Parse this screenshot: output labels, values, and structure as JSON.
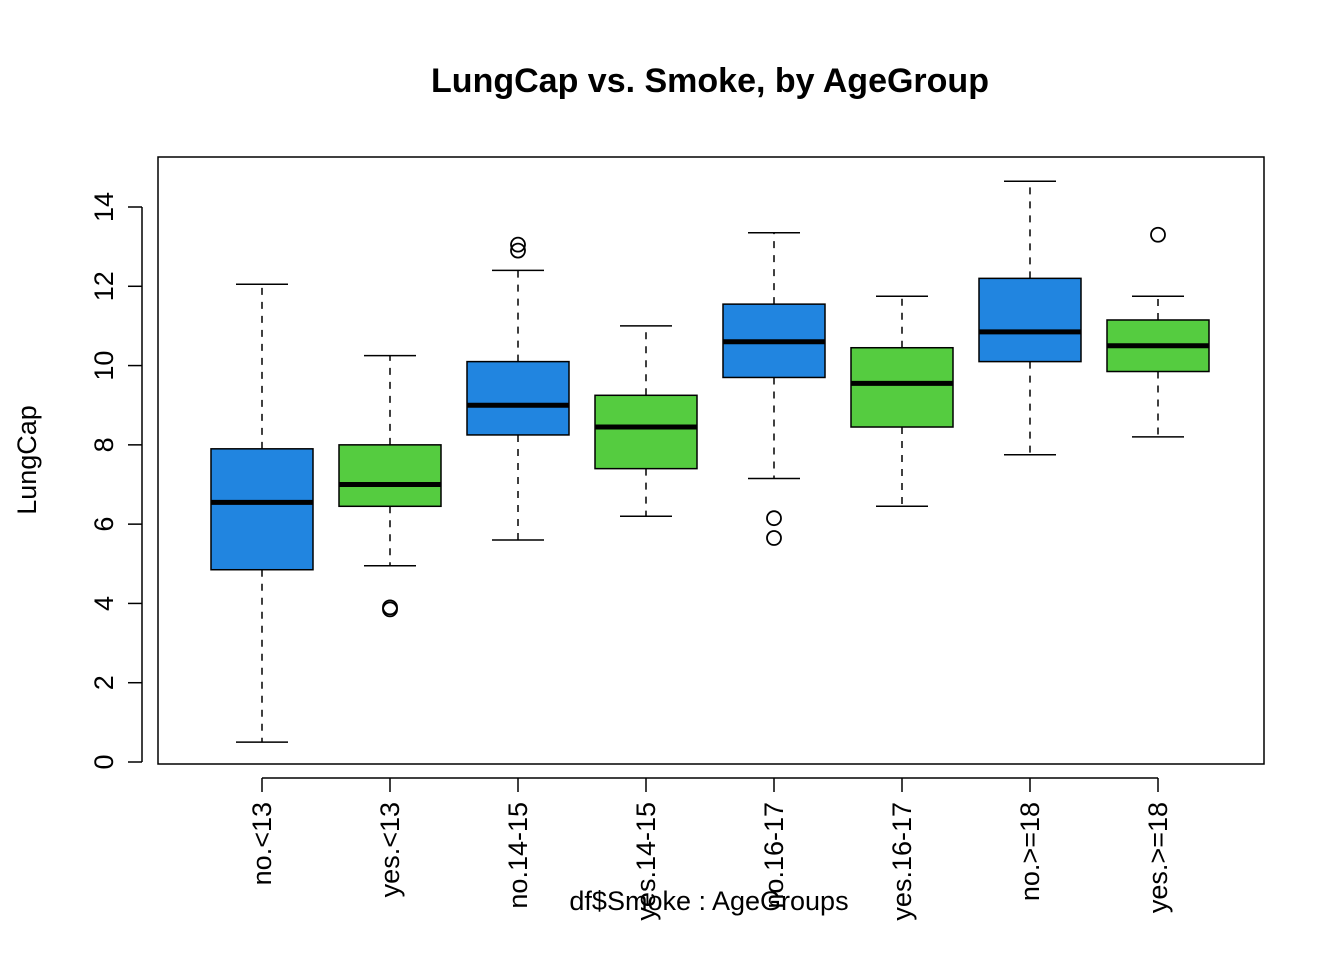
{
  "chart_data": {
    "type": "box",
    "title": "LungCap vs. Smoke, by AgeGroup",
    "xlabel": "df$Smoke : AgeGroups",
    "ylabel": "LungCap",
    "ylim": [
      0,
      15
    ],
    "y_ticks": [
      0,
      2,
      4,
      6,
      8,
      10,
      12,
      14
    ],
    "grid": false,
    "colors": {
      "no": "#2185E0",
      "yes": "#55CC40"
    },
    "categories": [
      "no.<13",
      "yes.<13",
      "no.14-15",
      "yes.14-15",
      "no.16-17",
      "yes.16-17",
      "no.>=18",
      "yes.>=18"
    ],
    "boxes": [
      {
        "label": "no.<13",
        "group": "no",
        "whisker_low": 0.5,
        "q1": 4.85,
        "median": 6.55,
        "q3": 7.9,
        "whisker_high": 12.05,
        "outliers": []
      },
      {
        "label": "yes.<13",
        "group": "yes",
        "whisker_low": 4.95,
        "q1": 6.45,
        "median": 7.0,
        "q3": 8.0,
        "whisker_high": 10.25,
        "outliers": [
          3.85,
          3.9
        ]
      },
      {
        "label": "no.14-15",
        "group": "no",
        "whisker_low": 5.6,
        "q1": 8.25,
        "median": 9.0,
        "q3": 10.1,
        "whisker_high": 12.4,
        "outliers": [
          12.9,
          13.05
        ]
      },
      {
        "label": "yes.14-15",
        "group": "yes",
        "whisker_low": 6.2,
        "q1": 7.4,
        "median": 8.45,
        "q3": 9.25,
        "whisker_high": 11.0,
        "outliers": []
      },
      {
        "label": "no.16-17",
        "group": "no",
        "whisker_low": 7.15,
        "q1": 9.7,
        "median": 10.6,
        "q3": 11.55,
        "whisker_high": 13.35,
        "outliers": [
          5.65,
          6.15
        ]
      },
      {
        "label": "yes.16-17",
        "group": "yes",
        "whisker_low": 6.45,
        "q1": 8.45,
        "median": 9.55,
        "q3": 10.45,
        "whisker_high": 11.75,
        "outliers": []
      },
      {
        "label": "no.>=18",
        "group": "no",
        "whisker_low": 7.75,
        "q1": 10.1,
        "median": 10.85,
        "q3": 12.2,
        "whisker_high": 14.65,
        "outliers": []
      },
      {
        "label": "yes.>=18",
        "group": "yes",
        "whisker_low": 8.2,
        "q1": 9.85,
        "median": 10.5,
        "q3": 11.15,
        "whisker_high": 11.75,
        "outliers": [
          13.3
        ]
      }
    ]
  }
}
